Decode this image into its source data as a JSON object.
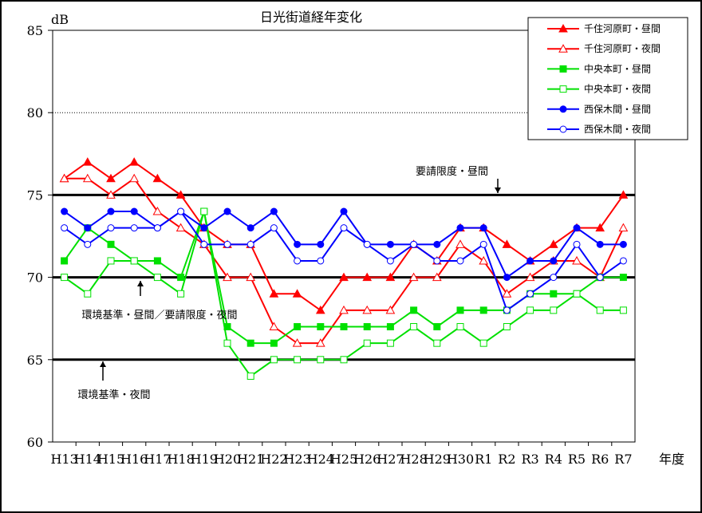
{
  "chart_data": {
    "type": "line",
    "title": "日光街道経年変化",
    "ylabel": "dB",
    "xlabel": "年度",
    "ylim": [
      60,
      85
    ],
    "yticks": [
      60,
      65,
      70,
      75,
      80,
      85
    ],
    "categories": [
      "H13",
      "H14",
      "H15",
      "H16",
      "H17",
      "H18",
      "H19",
      "H20",
      "H21",
      "H22",
      "H23",
      "H24",
      "H25",
      "H26",
      "H27",
      "H28",
      "H29",
      "H30",
      "R1",
      "R2",
      "R3",
      "R4",
      "R5",
      "R6",
      "R7"
    ],
    "series": [
      {
        "name": "千住河原町・昼間",
        "color": "#ff0000",
        "marker": "triangle",
        "filled": true,
        "values": [
          76,
          77,
          76,
          77,
          76,
          75,
          73,
          72,
          72,
          69,
          69,
          68,
          70,
          70,
          70,
          72,
          71,
          73,
          73,
          72,
          71,
          72,
          73,
          73,
          75
        ]
      },
      {
        "name": "千住河原町・夜間",
        "color": "#ff0000",
        "marker": "triangle",
        "filled": false,
        "values": [
          76,
          76,
          75,
          76,
          74,
          73,
          72,
          70,
          70,
          67,
          66,
          66,
          68,
          68,
          68,
          70,
          70,
          72,
          71,
          69,
          70,
          71,
          71,
          70,
          73
        ]
      },
      {
        "name": "中央本町・昼間",
        "color": "#00e000",
        "marker": "square",
        "filled": true,
        "values": [
          71,
          73,
          72,
          71,
          71,
          70,
          74,
          67,
          66,
          66,
          67,
          67,
          67,
          67,
          67,
          68,
          67,
          68,
          68,
          68,
          69,
          69,
          69,
          70,
          70
        ]
      },
      {
        "name": "中央本町・夜間",
        "color": "#00e000",
        "marker": "square",
        "filled": false,
        "values": [
          70,
          69,
          71,
          71,
          70,
          69,
          74,
          66,
          64,
          65,
          65,
          65,
          65,
          66,
          66,
          67,
          66,
          67,
          66,
          67,
          68,
          68,
          69,
          68,
          68
        ]
      },
      {
        "name": "西保木間・昼間",
        "color": "#0000ff",
        "marker": "circle",
        "filled": true,
        "values": [
          74,
          73,
          74,
          74,
          73,
          74,
          73,
          74,
          73,
          74,
          72,
          72,
          74,
          72,
          72,
          72,
          72,
          73,
          73,
          70,
          71,
          71,
          73,
          72,
          72
        ]
      },
      {
        "name": "西保木間・夜間",
        "color": "#0000ff",
        "marker": "circle",
        "filled": false,
        "values": [
          73,
          72,
          73,
          73,
          73,
          74,
          72,
          72,
          72,
          73,
          71,
          71,
          73,
          72,
          71,
          72,
          71,
          71,
          72,
          68,
          69,
          70,
          72,
          70,
          71
        ]
      }
    ],
    "reference_lines": [
      {
        "value": 80,
        "style": "dotted"
      },
      {
        "value": 75,
        "style": "solid"
      },
      {
        "value": 70,
        "style": "solid"
      },
      {
        "value": 65,
        "style": "solid"
      }
    ],
    "annotations": [
      {
        "text": "要請限度・昼間",
        "at_category": "H30",
        "at_value": 75,
        "arrow": "down"
      },
      {
        "text": "環境基準・昼間／要請限度・夜間",
        "at_category": "H17",
        "at_value": 70,
        "arrow": "up"
      },
      {
        "text": "環境基準・夜間",
        "at_category": "H15",
        "at_value": 65,
        "arrow": "up"
      }
    ],
    "legend_position": "top-right",
    "grid": false
  }
}
